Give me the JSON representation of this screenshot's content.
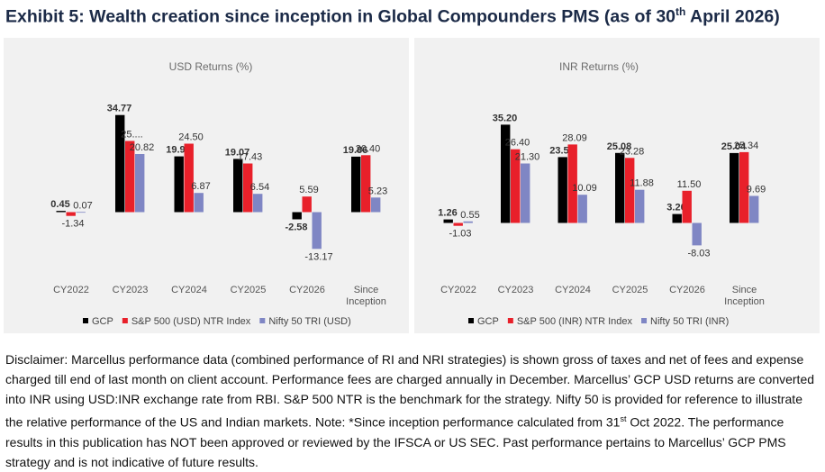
{
  "page": {
    "title_main": "Exhibit 5: Wealth creation since inception in Global Compounders PMS (as of 30",
    "title_sup": "th",
    "title_end": " April 2026)"
  },
  "chart_data": [
    {
      "type": "bar",
      "title": "USD Returns (%)",
      "categories": [
        "CY2022",
        "CY2023",
        "CY2024",
        "CY2025",
        "CY2026",
        "Since\nInception"
      ],
      "series": [
        {
          "name": "GCP",
          "values": [
            0.45,
            34.77,
            19.98,
            19.07,
            -2.58,
            19.86
          ],
          "labels": [
            "0.45",
            "34.77",
            "19.98",
            "19.07",
            "-2.58",
            "19.86"
          ]
        },
        {
          "name": "S&P 500 (USD) NTR Index",
          "values": [
            -1.34,
            25.5,
            24.5,
            17.43,
            5.59,
            20.4
          ],
          "labels": [
            "-1.34",
            "25....",
            "24.50",
            "17.43",
            "5.59",
            "20.40"
          ]
        },
        {
          "name": "Nifty 50 TRI (USD)",
          "values": [
            0.07,
            20.82,
            6.87,
            6.54,
            -13.17,
            5.23
          ],
          "labels": [
            "0.07",
            "20.82",
            "6.87",
            "6.54",
            "-13.17",
            "5.23"
          ]
        }
      ],
      "colors": [
        "#000000",
        "#e8202a",
        "#7f86c4"
      ],
      "ylim": [
        -18,
        45
      ],
      "legend": "bottom",
      "grid": false
    },
    {
      "type": "bar",
      "title": "INR Returns (%)",
      "categories": [
        "CY2022",
        "CY2023",
        "CY2024",
        "CY2025",
        "CY2026",
        "Since\nInception"
      ],
      "series": [
        {
          "name": "GCP",
          "values": [
            1.26,
            35.2,
            23.58,
            25.08,
            3.2,
            25.04
          ],
          "labels": [
            "1.26",
            "35.20",
            "23.58",
            "25.08",
            "3.20",
            "25.04"
          ]
        },
        {
          "name": "S&P 500 (INR) NTR Index",
          "values": [
            -1.03,
            26.4,
            28.09,
            23.28,
            11.5,
            25.34
          ],
          "labels": [
            "-1.03",
            "26.40",
            "28.09",
            "23.28",
            "11.50",
            "25.34"
          ]
        },
        {
          "name": "Nifty 50 TRI (INR)",
          "values": [
            0.55,
            21.3,
            10.09,
            11.88,
            -8.03,
            9.69
          ],
          "labels": [
            "0.55",
            "21.30",
            "10.09",
            "11.88",
            "-8.03",
            "9.69"
          ]
        }
      ],
      "colors": [
        "#000000",
        "#e8202a",
        "#7f86c4"
      ],
      "ylim": [
        -18,
        45
      ],
      "legend": "bottom",
      "grid": false
    }
  ],
  "disclaimer": {
    "part1": "Disclaimer: Marcellus performance data (combined performance of RI and NRI strategies) is shown gross of taxes and net of fees and expense charged till end of last month on client account. Performance fees are charged annually in December. Marcellus’ GCP USD returns are converted into INR using USD:INR exchange rate from RBI. S&P 500 NTR is the benchmark for the strategy. Nifty 50 is provided for reference to illustrate the relative performance of the US and Indian markets. Note: *Since inception performance calculated from 31",
    "sup": "st",
    "part2": " Oct 2022. The performance results in this publication has NOT been approved or reviewed by the IFSCA or US SEC. Past performance pertains to Marcellus’ GCP PMS strategy and is not indicative of future results."
  }
}
